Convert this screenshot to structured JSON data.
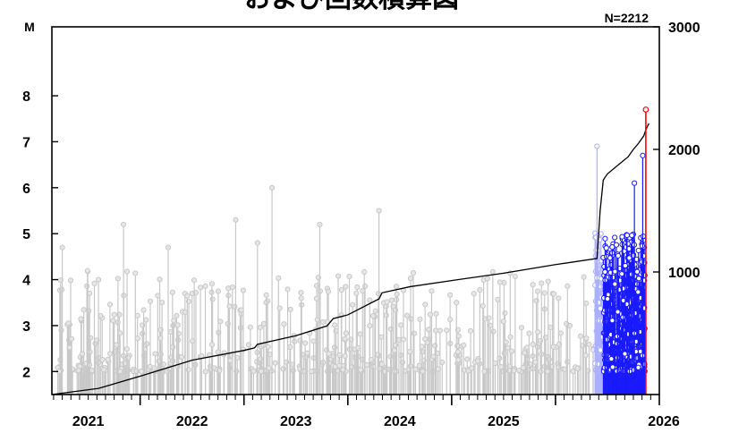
{
  "chart_data": {
    "type": "scatter",
    "title": "および回数積算図",
    "n_label": "N=2212",
    "left_axis_label": "M",
    "left_ylim": [
      1.5,
      9.5
    ],
    "left_ticks": [
      2,
      3,
      4,
      5,
      6,
      7,
      8
    ],
    "right_ylim": [
      0,
      3000
    ],
    "right_ticks": [
      1000,
      2000,
      3000
    ],
    "xlim": [
      2020.15,
      2026.0
    ],
    "year_labels": [
      "2021",
      "2022",
      "2023",
      "2024",
      "2025",
      "2026"
    ],
    "colors": {
      "past": "#c8c8c8",
      "recent": "#1a1aff",
      "recent_light": "#aab0ff",
      "latest": "#ff0000",
      "cumulative": "#000000"
    },
    "mainshock": {
      "t": 2025.87,
      "m": 7.7
    },
    "highlights": [
      {
        "t": 2025.4,
        "m": 6.9,
        "group": "recent_light"
      },
      {
        "t": 2025.84,
        "m": 6.7,
        "group": "recent"
      },
      {
        "t": 2025.76,
        "m": 6.1,
        "group": "recent"
      },
      {
        "t": 2020.84,
        "m": 5.2,
        "group": "past"
      },
      {
        "t": 2021.92,
        "m": 5.3,
        "group": "past"
      },
      {
        "t": 2022.27,
        "m": 6.0,
        "group": "past"
      },
      {
        "t": 2023.3,
        "m": 5.5,
        "group": "past"
      },
      {
        "t": 2022.73,
        "m": 5.2,
        "group": "past"
      },
      {
        "t": 2020.25,
        "m": 4.7,
        "group": "past"
      },
      {
        "t": 2021.27,
        "m": 4.7,
        "group": "past"
      },
      {
        "t": 2022.13,
        "m": 4.8,
        "group": "past"
      }
    ],
    "cumulative": {
      "t": [
        2020.15,
        2020.6,
        2021.0,
        2021.5,
        2022.0,
        2022.1,
        2022.13,
        2022.5,
        2022.8,
        2022.86,
        2023.0,
        2023.3,
        2023.33,
        2023.6,
        2024.0,
        2024.5,
        2025.0,
        2025.4,
        2025.43,
        2025.46,
        2025.5,
        2025.6,
        2025.7,
        2025.75,
        2025.8,
        2025.85,
        2025.87,
        2025.9
      ],
      "count": [
        0,
        50,
        150,
        280,
        360,
        380,
        410,
        480,
        560,
        620,
        650,
        780,
        830,
        880,
        930,
        990,
        1060,
        1110,
        1500,
        1750,
        1800,
        1870,
        1940,
        2000,
        2050,
        2110,
        2160,
        2212
      ]
    }
  }
}
